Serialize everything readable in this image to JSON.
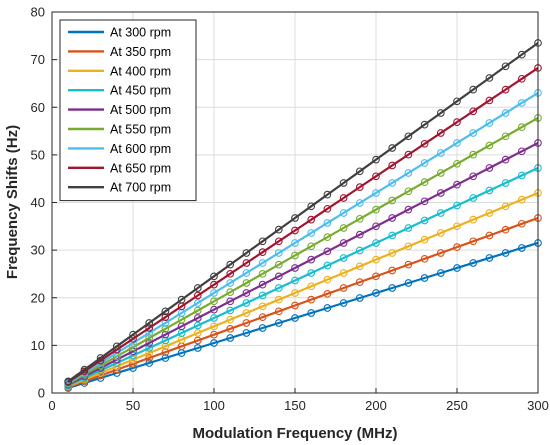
{
  "chart_data": {
    "type": "line",
    "title": "",
    "xlabel": "Modulation Frequency (MHz)",
    "ylabel": "Frequency Shifts (Hz)",
    "xlim": [
      0,
      300
    ],
    "ylim": [
      0,
      80
    ],
    "xticks": [
      0,
      50,
      100,
      150,
      200,
      250,
      300
    ],
    "yticks": [
      0,
      10,
      20,
      30,
      40,
      50,
      60,
      70,
      80
    ],
    "grid": true,
    "legend_position": "top-left",
    "marker": "circle",
    "x": [
      10,
      20,
      30,
      40,
      50,
      60,
      70,
      80,
      90,
      100,
      110,
      120,
      130,
      140,
      150,
      160,
      170,
      180,
      190,
      200,
      210,
      220,
      230,
      240,
      250,
      260,
      270,
      280,
      290,
      300
    ],
    "series": [
      {
        "name": "At 300 rpm",
        "color": "#0072BD",
        "slope": 0.105
      },
      {
        "name": "At 350 rpm",
        "color": "#D95319",
        "slope": 0.1225
      },
      {
        "name": "At 400 rpm",
        "color": "#EDB120",
        "slope": 0.14
      },
      {
        "name": "At 450 rpm",
        "color": "#17BECF",
        "slope": 0.1575
      },
      {
        "name": "At 500 rpm",
        "color": "#7E2F8E",
        "slope": 0.175
      },
      {
        "name": "At 550 rpm",
        "color": "#77AC30",
        "slope": 0.1925
      },
      {
        "name": "At 600 rpm",
        "color": "#4DBEEE",
        "slope": 0.21
      },
      {
        "name": "At 650 rpm",
        "color": "#A2142F",
        "slope": 0.2275
      },
      {
        "name": "At 700 rpm",
        "color": "#404040",
        "slope": 0.245
      }
    ]
  }
}
